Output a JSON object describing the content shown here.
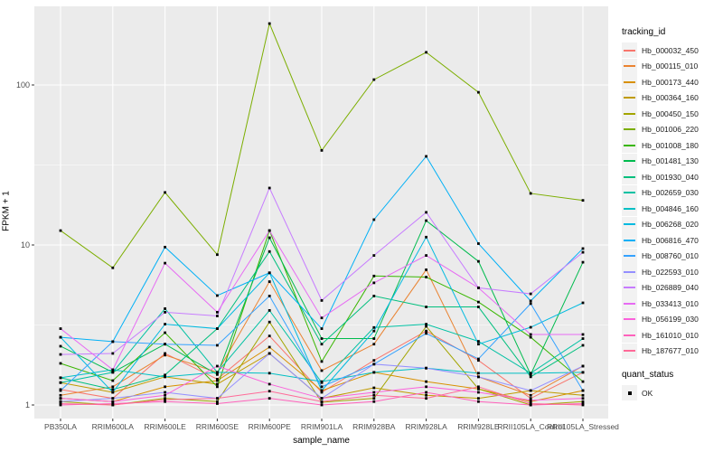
{
  "chart_data": {
    "type": "line",
    "title": "",
    "xlabel": "sample_name",
    "ylabel": "FPKM + 1",
    "y_scale": "log10",
    "y_ticks": [
      1,
      10,
      100
    ],
    "y_minor_ticks": [
      3.162,
      31.62
    ],
    "grid": true,
    "panel_background": "#EBEBEB",
    "gridline_color": "#FFFFFF",
    "legend_position": "right",
    "color_legend_title": "tracking_id",
    "shape_legend_title": "quant_status",
    "shape_legend_items": [
      "OK"
    ],
    "point_shape": "black-square",
    "categories": [
      "PB350LA",
      "RRIM600LA",
      "RRIM600LE",
      "RRIM600SE",
      "RRIM600PE",
      "RRIM901LA",
      "RRIM928BA",
      "RRIM928LA",
      "RRIM928LE",
      "RRII105LA_Control",
      "RRII105LA_Stressed"
    ],
    "series": [
      {
        "name": "Hb_000032_450",
        "color": "#F8766D",
        "values": [
          1.25,
          1.1,
          2.1,
          1.45,
          2.7,
          1.2,
          1.9,
          2.9,
          1.9,
          1.1,
          1.6
        ]
      },
      {
        "name": "Hb_000115_010",
        "color": "#EA8331",
        "values": [
          1.15,
          1.3,
          2.05,
          1.6,
          5.9,
          1.64,
          2.4,
          7.0,
          1.5,
          1.15,
          1.75
        ]
      },
      {
        "name": "Hb_000173_440",
        "color": "#D89000",
        "values": [
          1.1,
          1.05,
          1.3,
          1.42,
          2.3,
          1.23,
          1.6,
          1.4,
          1.26,
          1.05,
          1.23
        ]
      },
      {
        "name": "Hb_000364_160",
        "color": "#C09B00",
        "values": [
          1.38,
          1.2,
          1.5,
          1.35,
          2.1,
          1.1,
          1.28,
          1.15,
          1.1,
          1.23,
          1.15
        ]
      },
      {
        "name": "Hb_000450_150",
        "color": "#A3A500",
        "values": [
          1.05,
          1.0,
          1.1,
          1.05,
          3.3,
          1.04,
          1.1,
          3.1,
          1.26,
          1.0,
          1.05
        ]
      },
      {
        "name": "Hb_001006_220",
        "color": "#7CAE00",
        "values": [
          12.3,
          7.2,
          21.3,
          8.7,
          242.0,
          39.0,
          108.0,
          160.0,
          90.0,
          21.0,
          19.0
        ]
      },
      {
        "name": "Hb_001008_180",
        "color": "#39B600",
        "values": [
          1.82,
          1.42,
          2.83,
          1.3,
          12.3,
          1.87,
          6.4,
          6.3,
          4.4,
          2.65,
          1.4
        ]
      },
      {
        "name": "Hb_001481_130",
        "color": "#00BB4E",
        "values": [
          2.33,
          1.6,
          2.4,
          1.55,
          11.1,
          2.6,
          2.6,
          14.2,
          7.9,
          1.55,
          7.8
        ]
      },
      {
        "name": "Hb_001930_040",
        "color": "#00BF7D",
        "values": [
          1.48,
          1.25,
          1.54,
          3.0,
          9.1,
          2.4,
          4.8,
          4.1,
          4.1,
          1.5,
          2.36
        ]
      },
      {
        "name": "Hb_002659_030",
        "color": "#00C1A3",
        "values": [
          1.38,
          1.6,
          4.0,
          1.6,
          3.9,
          1.38,
          3.05,
          3.2,
          2.5,
          1.58,
          2.6
        ]
      },
      {
        "name": "Hb_004846_160",
        "color": "#00BFC4",
        "values": [
          1.48,
          1.66,
          1.5,
          1.6,
          1.58,
          1.4,
          1.6,
          1.7,
          1.58,
          1.58,
          1.6
        ]
      },
      {
        "name": "Hb_006268_020",
        "color": "#00BAE0",
        "values": [
          2.65,
          1.2,
          3.2,
          3.0,
          6.7,
          1.23,
          2.9,
          11.2,
          2.4,
          3.06,
          4.35
        ]
      },
      {
        "name": "Hb_006816_470",
        "color": "#00B0F6",
        "values": [
          2.65,
          2.49,
          9.7,
          4.83,
          6.7,
          3.0,
          14.4,
          35.8,
          10.2,
          4.47,
          9.5
        ]
      },
      {
        "name": "Hb_008760_010",
        "color": "#35A2FF",
        "values": [
          1.23,
          2.49,
          2.4,
          2.36,
          4.8,
          1.3,
          1.8,
          2.8,
          1.94,
          4.3,
          1.23
        ]
      },
      {
        "name": "Hb_022593_010",
        "color": "#9590FF",
        "values": [
          1.05,
          1.1,
          1.2,
          1.1,
          2.1,
          1.1,
          1.8,
          1.7,
          1.5,
          1.23,
          1.75
        ]
      },
      {
        "name": "Hb_026889_040",
        "color": "#C77CFF",
        "values": [
          2.07,
          2.1,
          3.8,
          3.6,
          22.7,
          4.5,
          8.6,
          16.0,
          5.4,
          4.95,
          9.0
        ]
      },
      {
        "name": "Hb_033413_010",
        "color": "#E76BF3",
        "values": [
          3.0,
          1.66,
          7.7,
          3.8,
          12.3,
          3.5,
          5.8,
          8.6,
          5.4,
          2.76,
          2.76
        ]
      },
      {
        "name": "Hb_056199_030",
        "color": "#FA62DB",
        "values": [
          1.1,
          1.05,
          1.15,
          1.75,
          1.35,
          1.1,
          1.2,
          1.3,
          1.2,
          1.07,
          1.1
        ]
      },
      {
        "name": "Hb_161010_010",
        "color": "#FF62BC",
        "values": [
          1.0,
          1.02,
          1.05,
          1.02,
          1.1,
          1.0,
          1.05,
          1.2,
          1.05,
          1.0,
          1.02
        ]
      },
      {
        "name": "Hb_187677_010",
        "color": "#FF6A98",
        "values": [
          1.02,
          1.0,
          1.08,
          1.1,
          1.22,
          1.05,
          1.15,
          1.1,
          1.3,
          1.02,
          1.0
        ]
      }
    ]
  }
}
